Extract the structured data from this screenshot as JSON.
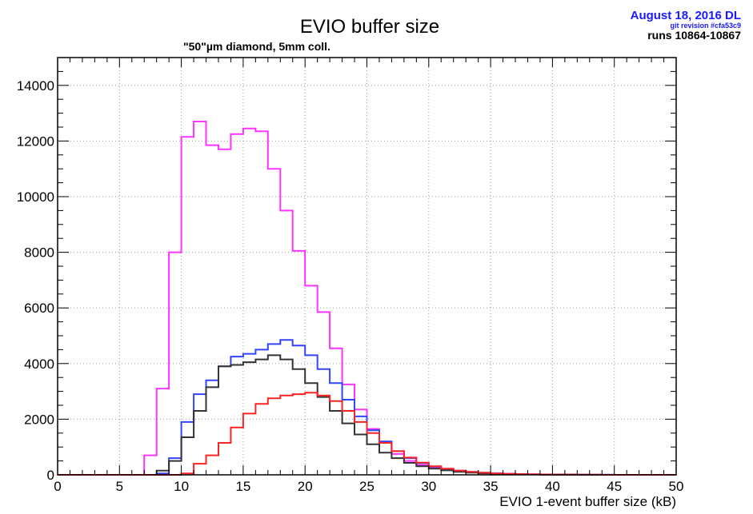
{
  "header": {
    "title": "EVIO buffer size",
    "subtitle": "\"50\"µm diamond, 5mm coll.",
    "date": "August 18, 2016 DL",
    "git_revision": "git revision #cfa53c9",
    "runs": "runs 10864-10867"
  },
  "colors": {
    "date_text": "#1a1aff",
    "grid": "#9a9a9a"
  },
  "chart_data": {
    "type": "histogram",
    "title": "EVIO buffer size",
    "subtitle": "\"50\"µm diamond, 5mm coll.",
    "xlabel": "EVIO 1-event buffer size (kB)",
    "ylabel": "",
    "xlim": [
      0,
      50
    ],
    "ylim": [
      0,
      15000
    ],
    "bin_width": 1,
    "x_ticks": [
      "0",
      "5",
      "10",
      "15",
      "20",
      "25",
      "30",
      "35",
      "40",
      "45",
      "50"
    ],
    "y_ticks": [
      "0",
      "2000",
      "4000",
      "6000",
      "8000",
      "10000",
      "12000",
      "14000"
    ],
    "grid": true,
    "series": [
      {
        "color": "#ff33ff",
        "values": [
          0,
          0,
          0,
          0,
          0,
          0,
          0,
          700,
          3100,
          8000,
          12150,
          12700,
          11850,
          11700,
          12250,
          12450,
          12350,
          11000,
          9500,
          8050,
          6800,
          5850,
          4550,
          3250,
          2350,
          1650,
          1150,
          750,
          500,
          350,
          250,
          190,
          140,
          100,
          75,
          55,
          40,
          28,
          20,
          14,
          10,
          7,
          5,
          3,
          2,
          1,
          1,
          0,
          0,
          0
        ]
      },
      {
        "color": "#3344ff",
        "values": [
          0,
          0,
          0,
          0,
          0,
          0,
          0,
          0,
          50,
          600,
          1900,
          2900,
          3400,
          3900,
          4250,
          4350,
          4500,
          4700,
          4850,
          4650,
          4300,
          3800,
          3300,
          2700,
          2100,
          1600,
          1200,
          850,
          600,
          420,
          300,
          210,
          150,
          105,
          75,
          50,
          35,
          25,
          18,
          12,
          8,
          6,
          4,
          3,
          2,
          1,
          1,
          0,
          0,
          0
        ]
      },
      {
        "color": "#333333",
        "values": [
          0,
          0,
          0,
          0,
          0,
          0,
          0,
          0,
          150,
          500,
          1350,
          2300,
          3150,
          3900,
          3950,
          4050,
          4150,
          4300,
          4150,
          3800,
          3300,
          2800,
          2300,
          1850,
          1450,
          1100,
          800,
          600,
          430,
          310,
          220,
          160,
          110,
          80,
          55,
          40,
          28,
          20,
          14,
          10,
          7,
          5,
          3,
          2,
          1,
          1,
          0,
          0,
          0,
          0
        ]
      },
      {
        "color": "#ff2222",
        "values": [
          0,
          0,
          0,
          0,
          0,
          0,
          0,
          0,
          0,
          0,
          50,
          400,
          700,
          1150,
          1700,
          2200,
          2550,
          2750,
          2850,
          2900,
          2950,
          2850,
          2650,
          2300,
          1900,
          1500,
          1150,
          850,
          620,
          440,
          310,
          220,
          150,
          105,
          75,
          50,
          35,
          25,
          18,
          12,
          8,
          5,
          3,
          2,
          1,
          1,
          0,
          0,
          0,
          0
        ]
      }
    ]
  }
}
